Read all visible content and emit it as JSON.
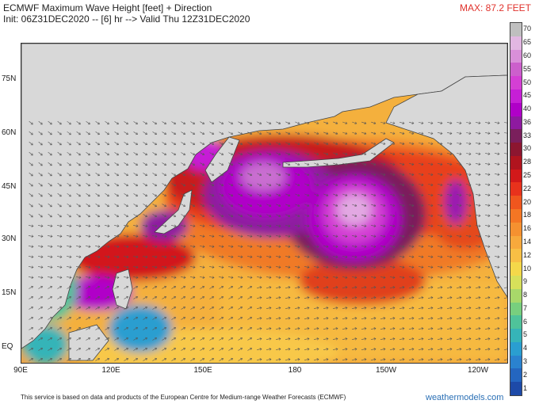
{
  "header": {
    "title": "ECMWF Maximum Wave Height [feet] + Direction",
    "init_line": "Init: 06Z31DEC2020 -- [6] hr --> Valid Thu 12Z31DEC2020",
    "max_label": "MAX: 87.2 FEET"
  },
  "map": {
    "lat_labels": [
      "75N",
      "60N",
      "45N",
      "30N",
      "15N",
      "EQ"
    ],
    "lon_labels": [
      "90E",
      "120E",
      "150E",
      "180",
      "150W",
      "120W"
    ],
    "colors": {
      "land": "#d8d8d8",
      "coast": "#444444",
      "arrows": "#555555"
    }
  },
  "legend": {
    "levels": [
      {
        "label": "70",
        "color": "#bfbfbf"
      },
      {
        "label": "65",
        "color": "#e2b7e2"
      },
      {
        "label": "60",
        "color": "#d98fd9"
      },
      {
        "label": "55",
        "color": "#cc5fcc"
      },
      {
        "label": "50",
        "color": "#d43fd4"
      },
      {
        "label": "45",
        "color": "#c61fd6"
      },
      {
        "label": "40",
        "color": "#b000c8"
      },
      {
        "label": "36",
        "color": "#8e1aa0"
      },
      {
        "label": "33",
        "color": "#7a1f5c"
      },
      {
        "label": "30",
        "color": "#8c1630"
      },
      {
        "label": "28",
        "color": "#b0141e"
      },
      {
        "label": "25",
        "color": "#d2191a"
      },
      {
        "label": "22",
        "color": "#e8321c"
      },
      {
        "label": "20",
        "color": "#f0561e"
      },
      {
        "label": "18",
        "color": "#f47624"
      },
      {
        "label": "16",
        "color": "#f59130"
      },
      {
        "label": "14",
        "color": "#f7a93c"
      },
      {
        "label": "12",
        "color": "#f8bf45"
      },
      {
        "label": "10",
        "color": "#f4d84a"
      },
      {
        "label": "9",
        "color": "#d7e05a"
      },
      {
        "label": "8",
        "color": "#a8d86a"
      },
      {
        "label": "7",
        "color": "#78cf7e"
      },
      {
        "label": "6",
        "color": "#4fc39a"
      },
      {
        "label": "5",
        "color": "#36b4b8"
      },
      {
        "label": "4",
        "color": "#2a9ed0"
      },
      {
        "label": "3",
        "color": "#2a82cf"
      },
      {
        "label": "2",
        "color": "#2466c0"
      },
      {
        "label": "1",
        "color": "#1d4aa8"
      }
    ]
  },
  "footer": {
    "text": "This service is based on data and products of the European Centre for Medium-range Weather Forecasts (ECMWF)",
    "credit": "weathermodels.com"
  }
}
